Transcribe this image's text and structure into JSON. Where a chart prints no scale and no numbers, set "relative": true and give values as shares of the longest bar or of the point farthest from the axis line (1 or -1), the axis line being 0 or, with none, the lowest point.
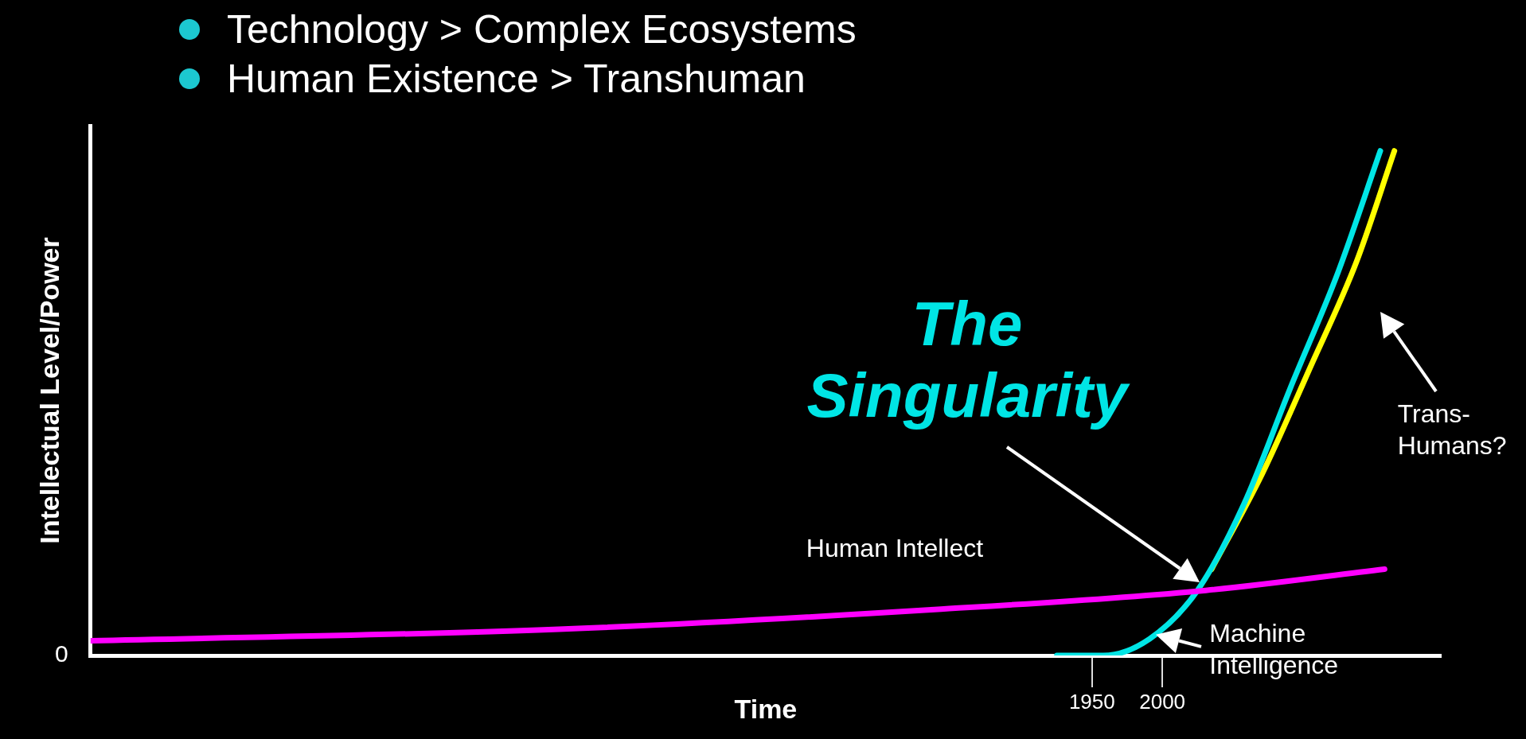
{
  "chart_data": {
    "type": "line",
    "title": "Technology > Complex Ecosystems",
    "subtitle": "Human Existence > Transhuman",
    "xlabel": "Time",
    "ylabel": "Intellectual Level/Power",
    "relative": true,
    "xlim": [
      1238,
      2198
    ],
    "xticks": [
      1950,
      2000
    ],
    "grid": false,
    "legend": false,
    "marker": "none",
    "line_style": "solid",
    "annotations": [
      {
        "text": "The Singularity",
        "x": 2031,
        "y": 0.129
      },
      "0"
    ],
    "series": [
      {
        "name": "Human Intellect",
        "color": "#ff00ff",
        "x": [
          1238,
          1571,
          1838,
          2031,
          2158
        ],
        "values": [
          0.029,
          0.052,
          0.091,
          0.129,
          0.171
        ]
      },
      {
        "name": "Machine Intelligence",
        "color": "#00e5e5",
        "x": [
          1925,
          1958,
          1991,
          2025,
          2058,
          2091,
          2125,
          2155
        ],
        "values": [
          0,
          0,
          0.033,
          0.129,
          0.3,
          0.53,
          0.76,
          1
        ]
      },
      {
        "name": "Trans-Humans?",
        "color": "#ffff00",
        "x": [
          2035,
          2071,
          2105,
          2138,
          2165
        ],
        "values": [
          0.171,
          0.36,
          0.57,
          0.78,
          1
        ]
      }
    ]
  }
}
